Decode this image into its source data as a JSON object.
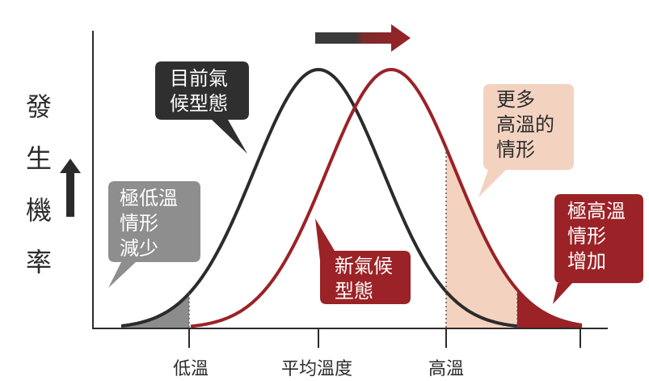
{
  "y_axis_label": [
    "發",
    "生",
    "機",
    "率"
  ],
  "x_tick_labels": {
    "low": "低溫",
    "mean": "平均溫度",
    "high": "高溫"
  },
  "callouts": {
    "current_climate": "目前氣\n候型態",
    "new_climate": "新氣候\n型態",
    "more_hot": "更多\n高溫的\n情形",
    "extreme_low": "極低溫\n情形\n減少",
    "extreme_high": "極高溫\n情形\n增加"
  },
  "colors": {
    "current_curve": "#2b2b2b",
    "new_curve": "#9b2226",
    "low_tail_fill": "#8c8c8c",
    "more_hot_fill": "#f3d3c0",
    "extreme_high_fill": "#9b2226",
    "axis": "#2b2b2b"
  },
  "icons": {
    "shift_arrow": "right-arrow-icon",
    "probability_arrow": "up-arrow-icon"
  }
}
